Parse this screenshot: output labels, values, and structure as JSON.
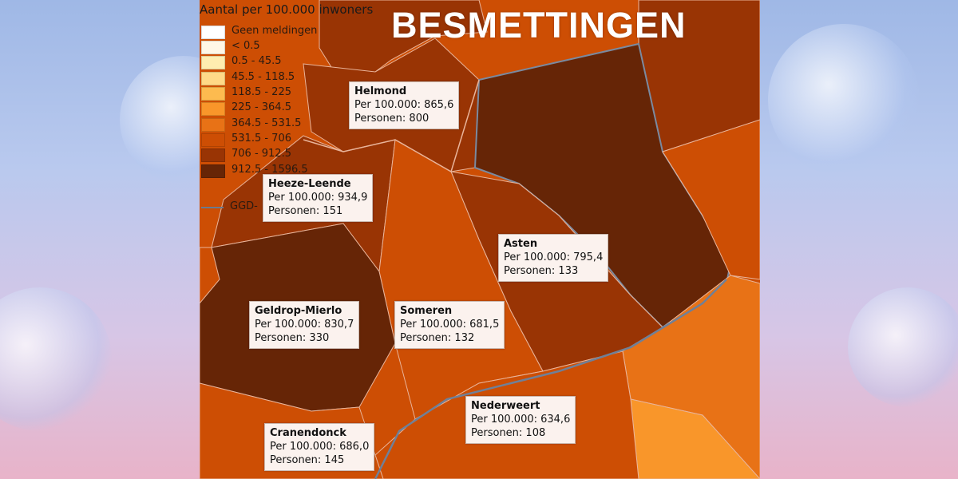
{
  "header": {
    "title": "BESMETTINGEN"
  },
  "legend": {
    "title": "Aantal per 100.000 inwoners",
    "items": [
      {
        "label": "Geen meldingen",
        "color": "#ffffff"
      },
      {
        "label": "< 0.5",
        "color": "#fff7e6"
      },
      {
        "label": "0.5 - 45.5",
        "color": "#ffedb0"
      },
      {
        "label": "45.5 - 118.5",
        "color": "#ffd987"
      },
      {
        "label": "118.5 - 225",
        "color": "#fdbb4f"
      },
      {
        "label": "225 - 364.5",
        "color": "#f9962a"
      },
      {
        "label": "364.5 - 531.5",
        "color": "#e87216"
      },
      {
        "label": "531.5 - 706",
        "color": "#cd4e04"
      },
      {
        "label": "706 - 912.5",
        "color": "#993404"
      },
      {
        "label": "912.5 - 1596.5",
        "color": "#662506"
      }
    ],
    "boundary_label": "GGD-"
  },
  "regions": [
    {
      "name": "Helmond",
      "per100k": "Per 100.000: 865,6",
      "persons": "Personen: 800"
    },
    {
      "name": "Heeze-Leende",
      "per100k": "Per 100.000: 934,9",
      "persons": "Personen: 151"
    },
    {
      "name": "Asten",
      "per100k": "Per 100.000: 795,4",
      "persons": "Personen: 133"
    },
    {
      "name": "Geldrop-Mierlo",
      "per100k": "Per 100.000: 830,7",
      "persons": "Personen: 330"
    },
    {
      "name": "Someren",
      "per100k": "Per 100.000: 681,5",
      "persons": "Personen: 132"
    },
    {
      "name": "Nederweert",
      "per100k": "Per 100.000: 634,6",
      "persons": "Personen: 108"
    },
    {
      "name": "Cranendonck",
      "per100k": "Per 100.000: 686,0",
      "persons": "Personen: 145"
    }
  ]
}
